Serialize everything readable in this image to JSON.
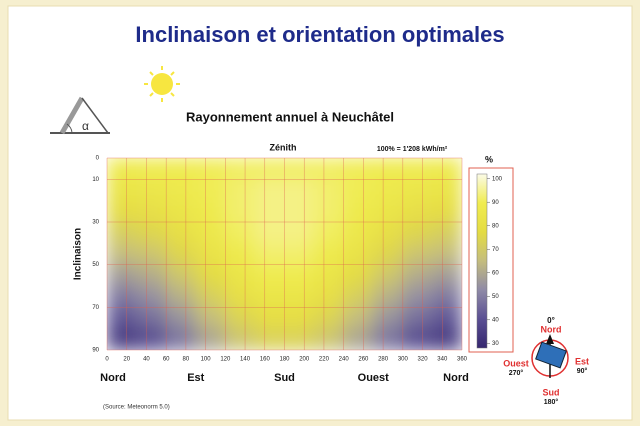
{
  "page_title": "Inclinaison et orientation optimales",
  "alpha_symbol": "α",
  "source": "(Source: Meteonorm 5.0)",
  "compass": {
    "north_deg": "0°",
    "north": "Nord",
    "east": "Est",
    "east_deg": "90°",
    "south": "Sud",
    "south_deg": "180°",
    "west": "Ouest",
    "west_deg": "270°"
  },
  "chart_data": {
    "type": "heatmap",
    "title": "Rayonnement annuel à Neuchâtel",
    "subtitle": "Zénith",
    "annotation": "100% = 1'208 kWh/m²",
    "ylabel": "Inclinaison",
    "colorbar_label": "%",
    "xbins": [
      0,
      30,
      60,
      90,
      120,
      150,
      180,
      210,
      240,
      270,
      300,
      330,
      360
    ],
    "ybins": [
      0,
      10,
      20,
      30,
      40,
      50,
      60,
      70,
      80,
      90
    ],
    "z": [
      [
        88,
        89,
        89,
        90,
        91,
        91,
        91,
        91,
        90,
        89,
        89,
        88
      ],
      [
        84,
        85,
        87,
        90,
        92,
        94,
        94,
        92,
        90,
        87,
        85,
        84
      ],
      [
        78,
        80,
        84,
        88,
        92,
        94,
        94,
        92,
        88,
        84,
        80,
        78
      ],
      [
        72,
        75,
        80,
        86,
        91,
        94,
        94,
        91,
        86,
        80,
        75,
        72
      ],
      [
        65,
        68,
        75,
        82,
        88,
        92,
        92,
        88,
        82,
        75,
        68,
        65
      ],
      [
        57,
        61,
        69,
        77,
        84,
        89,
        89,
        84,
        77,
        69,
        61,
        57
      ],
      [
        49,
        54,
        62,
        72,
        80,
        84,
        84,
        80,
        72,
        62,
        54,
        49
      ],
      [
        42,
        47,
        55,
        65,
        74,
        79,
        79,
        74,
        65,
        55,
        47,
        42
      ],
      [
        34,
        39,
        48,
        59,
        68,
        73,
        73,
        68,
        59,
        48,
        39,
        34
      ]
    ],
    "xlim": [
      0,
      360
    ],
    "ylim": [
      0,
      90
    ],
    "y_inverted": true,
    "xticks": [
      0,
      20,
      40,
      60,
      80,
      100,
      120,
      140,
      160,
      180,
      200,
      220,
      240,
      260,
      280,
      300,
      320,
      340,
      360
    ],
    "yticks": [
      0,
      10,
      30,
      50,
      70,
      90
    ],
    "direction_ticks": [
      {
        "value": 0,
        "label": "Nord"
      },
      {
        "value": 90,
        "label": "Est"
      },
      {
        "value": 180,
        "label": "Sud"
      },
      {
        "value": 270,
        "label": "Ouest"
      },
      {
        "value": 360,
        "label": "Nord"
      }
    ],
    "zlim": [
      28,
      102
    ],
    "zticks": [
      30,
      40,
      50,
      60,
      70,
      80,
      90,
      100
    ],
    "colormap": [
      "#35276f",
      "#5a4f93",
      "#8f8aa6",
      "#c4bd7e",
      "#e4dc43",
      "#f0ec50",
      "#fbfbe8"
    ],
    "grid": true,
    "grid_color": "#e06050"
  }
}
